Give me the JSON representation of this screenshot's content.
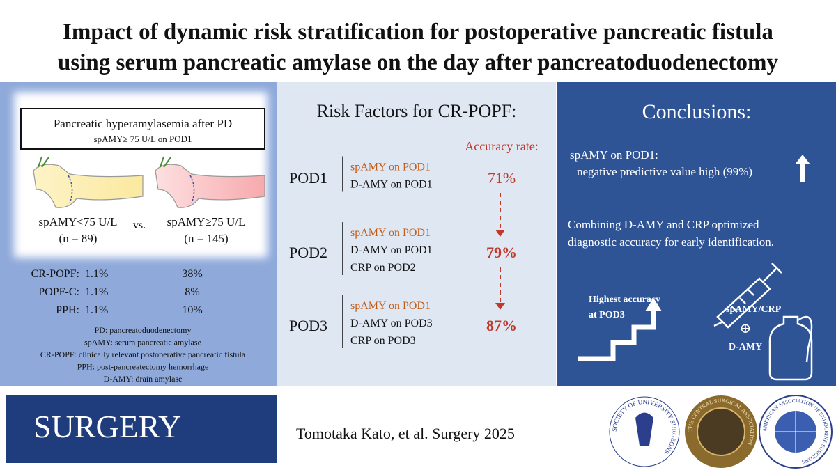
{
  "header": {
    "title": [
      "Impact of dynamic risk stratification for postoperative pancreatic fistula",
      "using serum pancreatic amylase on the day after pancreatoduodenectomy"
    ]
  },
  "left_panel": {
    "box_title": "Pancreatic hyperamylasemia after PD",
    "box_subtitle": "spAMY≥ 75 U/L on POD1",
    "groups": [
      {
        "label": "spAMY<75 U/L",
        "n": "(n = 89)"
      },
      {
        "label": "spAMY≥75 U/L",
        "n": "(n = 145)"
      }
    ],
    "versus": "vs.",
    "outcomes": [
      {
        "name": "CR-POPF:",
        "low": "1.1%",
        "high": "38%"
      },
      {
        "name": "POPF-C:",
        "low": "1.1%",
        "high": "8%"
      },
      {
        "name": "PPH:",
        "low": "1.1%",
        "high": "10%"
      }
    ],
    "abbreviations": [
      "PD: pancreatoduodenectomy",
      "spAMY: serum pancreatic amylase",
      "CR-POPF: clinically relevant postoperative pancreatic fistula",
      "PPH: post-pancreatectomy hemorrhage",
      "D-AMY: drain amylase"
    ]
  },
  "middle_panel": {
    "heading": "Risk Factors for CR-POPF:",
    "accuracy_heading": "Accuracy rate:",
    "days": [
      {
        "day": "POD1",
        "factors": [
          "spAMY on POD1",
          "D-AMY on POD1"
        ],
        "accuracy": "71%"
      },
      {
        "day": "POD2",
        "factors": [
          "spAMY on POD1",
          "D-AMY on POD1",
          "CRP on POD2"
        ],
        "accuracy": "79%"
      },
      {
        "day": "POD3",
        "factors": [
          "spAMY on POD1",
          "D-AMY on POD3",
          "CRP on POD3"
        ],
        "accuracy": "87%"
      }
    ]
  },
  "right_panel": {
    "heading": "Conclusions:",
    "point1": [
      "spAMY on POD1:",
      "negative predictive value high (99%)"
    ],
    "point2": [
      "Combining D-AMY and CRP optimized",
      "diagnostic accuracy for early identification."
    ],
    "stairs_label": [
      "Highest accuracy",
      "at POD3"
    ],
    "combo": [
      "spAMY/CRP",
      "⊕",
      "D-AMY"
    ]
  },
  "footer": {
    "journal": "SURGERY",
    "citation": "Tomotaka Kato, et al. Surgery 2025",
    "logos": [
      "SOCIETY OF UNIVERSITY SURGEONS",
      "THE CENTRAL SURGICAL ASSOCIATION",
      "AMERICAN ASSOCIATION OF ENDOCRINE SURGEONS"
    ]
  }
}
